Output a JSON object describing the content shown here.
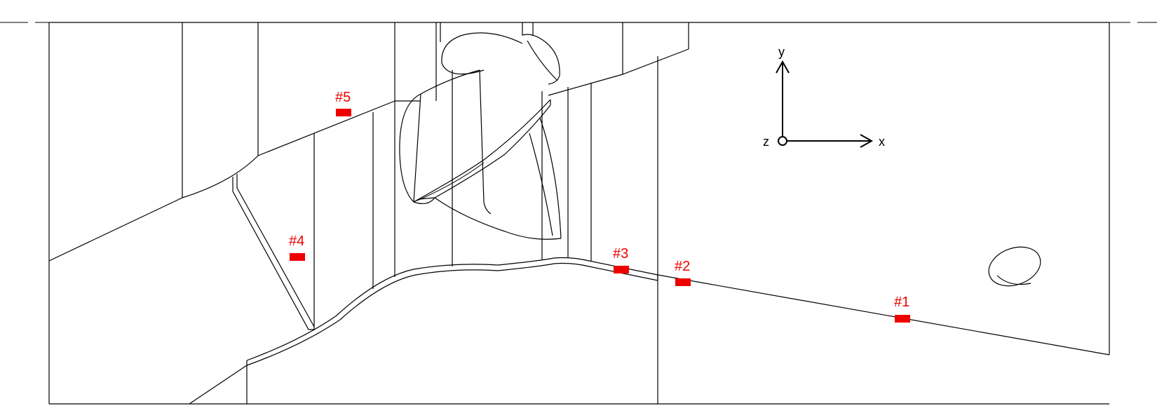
{
  "markers": [
    {
      "id": "1",
      "label": "#1"
    },
    {
      "id": "2",
      "label": "#2"
    },
    {
      "id": "3",
      "label": "#3"
    },
    {
      "id": "4",
      "label": "#4"
    },
    {
      "id": "5",
      "label": "#5"
    }
  ],
  "axes": {
    "x_label": "x",
    "y_label": "y",
    "z_label": "z"
  },
  "colors": {
    "marker": "#ee0000",
    "line": "#000000",
    "background": "#ffffff"
  }
}
